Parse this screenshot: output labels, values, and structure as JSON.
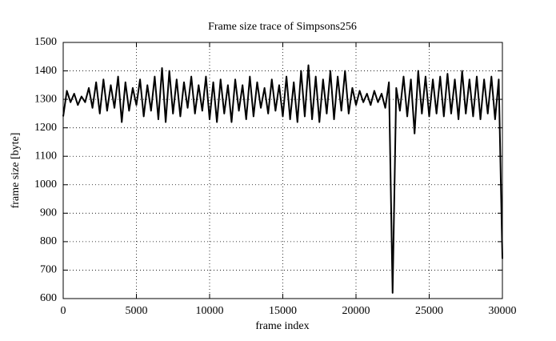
{
  "chart_data": {
    "type": "line",
    "title": "Frame size trace of Simpsons256",
    "xlabel": "frame index",
    "ylabel": "frame size [byte]",
    "x": [
      0,
      250,
      500,
      750,
      1000,
      1250,
      1500,
      1750,
      2000,
      2250,
      2500,
      2750,
      3000,
      3250,
      3500,
      3750,
      4000,
      4250,
      4500,
      4750,
      5000,
      5250,
      5500,
      5750,
      6000,
      6250,
      6500,
      6750,
      7000,
      7250,
      7500,
      7750,
      8000,
      8250,
      8500,
      8750,
      9000,
      9250,
      9500,
      9750,
      10000,
      10250,
      10500,
      10750,
      11000,
      11250,
      11500,
      11750,
      12000,
      12250,
      12500,
      12750,
      13000,
      13250,
      13500,
      13750,
      14000,
      14250,
      14500,
      14750,
      15000,
      15250,
      15500,
      15750,
      16000,
      16250,
      16500,
      16750,
      17000,
      17250,
      17500,
      17750,
      18000,
      18250,
      18500,
      18750,
      19000,
      19250,
      19500,
      19750,
      20000,
      20250,
      20500,
      20750,
      21000,
      21250,
      21500,
      21750,
      22000,
      22250,
      22500,
      22750,
      23000,
      23250,
      23500,
      23750,
      24000,
      24250,
      24500,
      24750,
      25000,
      25250,
      25500,
      25750,
      26000,
      26250,
      26500,
      26750,
      27000,
      27250,
      27500,
      27750,
      28000,
      28250,
      28500,
      28750,
      29000,
      29250,
      29500,
      29750,
      30000
    ],
    "values": [
      1240,
      1330,
      1290,
      1320,
      1280,
      1310,
      1290,
      1340,
      1270,
      1360,
      1250,
      1370,
      1260,
      1350,
      1270,
      1380,
      1220,
      1360,
      1260,
      1340,
      1280,
      1370,
      1240,
      1350,
      1260,
      1380,
      1230,
      1410,
      1220,
      1400,
      1250,
      1370,
      1240,
      1360,
      1270,
      1380,
      1250,
      1350,
      1260,
      1380,
      1230,
      1360,
      1220,
      1370,
      1250,
      1350,
      1220,
      1370,
      1260,
      1350,
      1230,
      1380,
      1240,
      1360,
      1270,
      1340,
      1250,
      1370,
      1260,
      1350,
      1240,
      1380,
      1230,
      1360,
      1220,
      1400,
      1240,
      1420,
      1230,
      1380,
      1220,
      1370,
      1250,
      1400,
      1230,
      1380,
      1260,
      1400,
      1250,
      1340,
      1280,
      1330,
      1290,
      1320,
      1280,
      1330,
      1290,
      1320,
      1270,
      1360,
      620,
      1340,
      1260,
      1380,
      1240,
      1370,
      1180,
      1400,
      1250,
      1380,
      1240,
      1370,
      1250,
      1380,
      1240,
      1390,
      1250,
      1370,
      1230,
      1400,
      1250,
      1370,
      1240,
      1380,
      1230,
      1370,
      1250,
      1380,
      1230,
      1370,
      740
    ],
    "color": "#000000",
    "xlim": [
      0,
      30000
    ],
    "xticks": [
      0,
      5000,
      10000,
      15000,
      20000,
      25000,
      30000
    ],
    "ylim": [
      600,
      1500
    ],
    "yticks": [
      600,
      700,
      800,
      900,
      1000,
      1100,
      1200,
      1300,
      1400,
      1500
    ],
    "grid": true
  }
}
